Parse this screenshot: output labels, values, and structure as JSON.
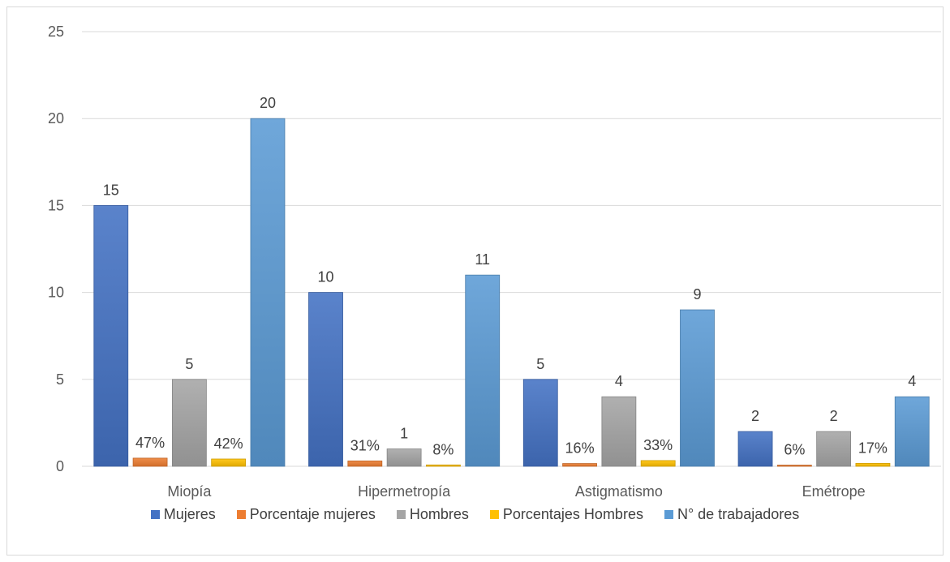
{
  "chart_data": {
    "type": "bar",
    "categories": [
      "Miopía",
      "Hipermetropía",
      "Astigmatismo",
      "Emétrope"
    ],
    "ylim": [
      0,
      25
    ],
    "yticks": [
      0,
      5,
      10,
      15,
      20,
      25
    ],
    "grid": true,
    "legend_position": "bottom",
    "series": [
      {
        "name": "Mujeres",
        "color": "#4472c4",
        "values": [
          15,
          10,
          5,
          2
        ],
        "labels": [
          "15",
          "10",
          "5",
          "2"
        ]
      },
      {
        "name": "Porcentaje mujeres",
        "color": "#ed7d31",
        "values": [
          0.47,
          0.31,
          0.16,
          0.06
        ],
        "labels": [
          "47%",
          "31%",
          "16%",
          "6%"
        ]
      },
      {
        "name": "Hombres",
        "color": "#a5a5a5",
        "values": [
          5,
          1,
          4,
          2
        ],
        "labels": [
          "5",
          "1",
          "4",
          "2"
        ]
      },
      {
        "name": "Porcentajes Hombres",
        "color": "#ffc000",
        "values": [
          0.42,
          0.08,
          0.33,
          0.17
        ],
        "labels": [
          "42%",
          "8%",
          "33%",
          "17%"
        ]
      },
      {
        "name": "N° de trabajadores",
        "color": "#5b9bd5",
        "values": [
          20,
          11,
          9,
          4
        ],
        "labels": [
          "20",
          "11",
          "9",
          "4"
        ]
      }
    ]
  }
}
